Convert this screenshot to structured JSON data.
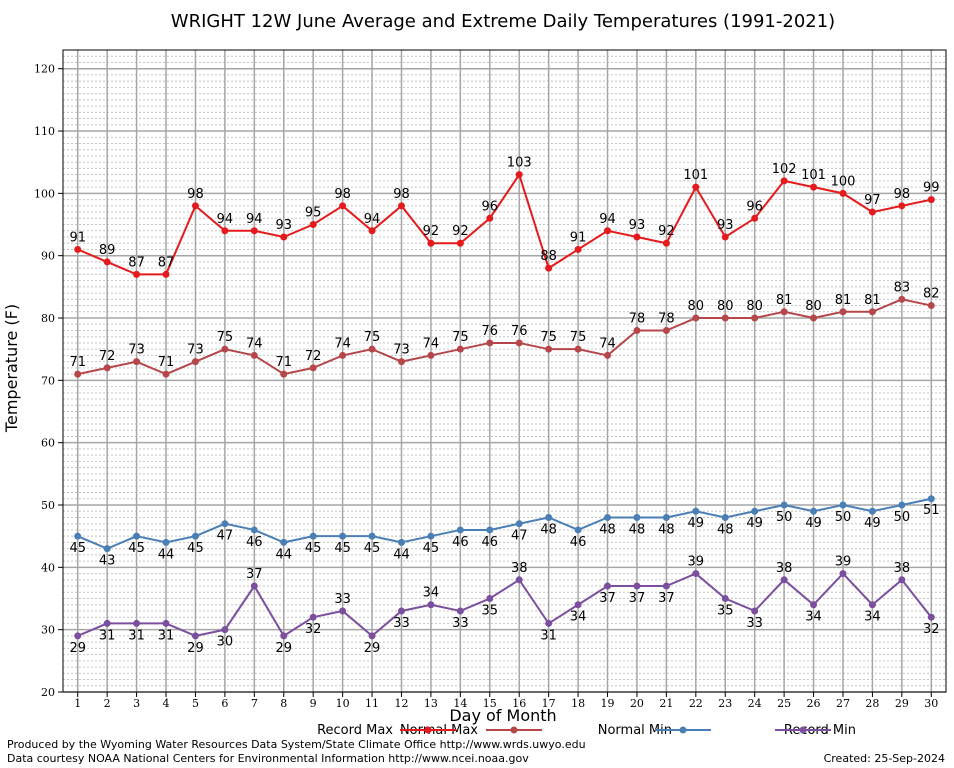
{
  "chart_data": {
    "type": "line",
    "title": "WRIGHT 12W June Average and Extreme Daily Temperatures (1991-2021)",
    "xlabel": "Day of Month",
    "ylabel": "Temperature (F)",
    "xlim": [
      0.5,
      30.5
    ],
    "ylim": [
      20,
      123
    ],
    "x": [
      1,
      2,
      3,
      4,
      5,
      6,
      7,
      8,
      9,
      10,
      11,
      12,
      13,
      14,
      15,
      16,
      17,
      18,
      19,
      20,
      21,
      22,
      23,
      24,
      25,
      26,
      27,
      28,
      29,
      30
    ],
    "yticks": [
      20,
      30,
      40,
      50,
      60,
      70,
      80,
      90,
      100,
      110,
      120
    ],
    "grid": true,
    "series": [
      {
        "name": "Record Max",
        "color": "#e41a1c",
        "values": [
          91,
          89,
          87,
          87,
          98,
          94,
          94,
          93,
          95,
          98,
          94,
          98,
          92,
          92,
          96,
          103,
          88,
          91,
          94,
          93,
          92,
          101,
          93,
          96,
          102,
          101,
          100,
          97,
          98,
          99
        ]
      },
      {
        "name": "Normal Max",
        "color": "#b5474b",
        "values": [
          71,
          72,
          73,
          71,
          73,
          75,
          74,
          71,
          72,
          74,
          75,
          73,
          74,
          75,
          76,
          76,
          75,
          75,
          74,
          78,
          78,
          80,
          80,
          80,
          81,
          80,
          81,
          81,
          83,
          82
        ]
      },
      {
        "name": "Normal Min",
        "color": "#4a7fb5",
        "values": [
          45,
          43,
          45,
          44,
          45,
          47,
          46,
          44,
          45,
          45,
          45,
          44,
          45,
          46,
          46,
          47,
          48,
          46,
          48,
          48,
          48,
          49,
          48,
          49,
          50,
          49,
          50,
          49,
          50,
          51
        ]
      },
      {
        "name": "Record Min",
        "color": "#7b4f9d",
        "values": [
          29,
          31,
          31,
          31,
          29,
          30,
          37,
          29,
          32,
          33,
          29,
          33,
          34,
          33,
          35,
          38,
          31,
          34,
          37,
          37,
          37,
          39,
          35,
          33,
          38,
          34,
          39,
          34,
          38,
          32
        ]
      }
    ]
  },
  "footer": {
    "line1": "Produced by the Wyoming Water Resources Data System/State Climate Office http://www.wrds.uwyo.edu",
    "line2": "Data courtesy NOAA National Centers for Environmental Information http://www.ncei.noaa.gov",
    "created": "Created:  25-Sep-2024"
  }
}
